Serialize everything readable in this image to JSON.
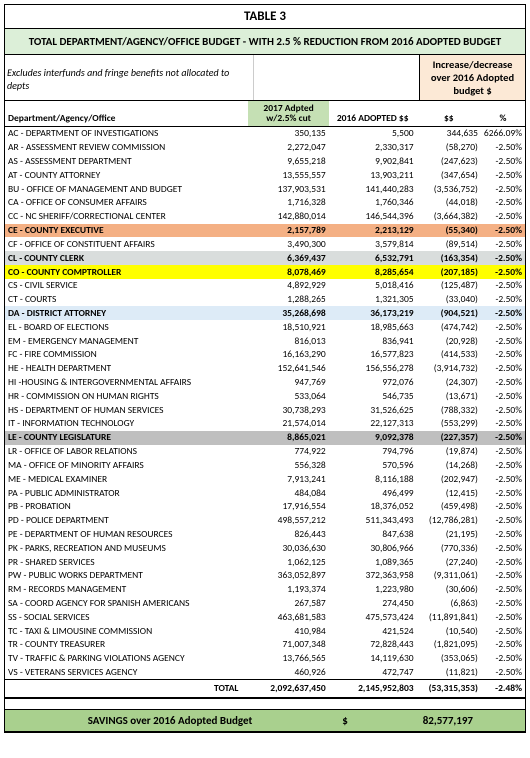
{
  "title": "TABLE 3",
  "subtitle": "TOTAL DEPARTMENT/AGENCY/OFFICE BUDGET - WITH 2.5 % REDUCTION FROM 2016 ADOPTED BUDGET",
  "excludes_note": "Excludes interfunds and fringe benefits not allocated to depts",
  "incdec_header": "Increase/decrease over 2016 Adopted budget $",
  "cols": {
    "dept": "Department/Agency/Office",
    "adpt": "2017 Adpted w/2.5% cut",
    "adopted": "2016 ADOPTED $$",
    "dollar": "$$",
    "pct": "%"
  },
  "rows": [
    {
      "hl": "",
      "label": "AC - DEPARTMENT OF INVESTIGATIONS",
      "a": "350,135",
      "b": "5,500",
      "c": "344,635",
      "d": "6266.09%"
    },
    {
      "hl": "",
      "label": "AR - ASSESSMENT REVIEW COMMISSION",
      "a": "2,272,047",
      "b": "2,330,317",
      "c": "(58,270)",
      "d": "-2.50%"
    },
    {
      "hl": "",
      "label": "AS - ASSESSMENT DEPARTMENT",
      "a": "9,655,218",
      "b": "9,902,841",
      "c": "(247,623)",
      "d": "-2.50%"
    },
    {
      "hl": "",
      "label": "AT - COUNTY ATTORNEY",
      "a": "13,555,557",
      "b": "13,903,211",
      "c": "(347,654)",
      "d": "-2.50%"
    },
    {
      "hl": "",
      "label": "BU - OFFICE OF MANAGEMENT AND BUDGET",
      "a": "137,903,531",
      "b": "141,440,283",
      "c": "(3,536,752)",
      "d": "-2.50%"
    },
    {
      "hl": "",
      "label": "CA - OFFICE OF CONSUMER AFFAIRS",
      "a": "1,716,328",
      "b": "1,760,346",
      "c": "(44,018)",
      "d": "-2.50%"
    },
    {
      "hl": "",
      "label": "CC - NC SHERIFF/CORRECTIONAL CENTER",
      "a": "142,880,014",
      "b": "146,544,396",
      "c": "(3,664,382)",
      "d": "-2.50%"
    },
    {
      "hl": "ce",
      "label": "CE - COUNTY EXECUTIVE",
      "a": "2,157,789",
      "b": "2,213,129",
      "c": "(55,340)",
      "d": "-2.50%"
    },
    {
      "hl": "",
      "label": "CF - OFFICE OF CONSTITUENT AFFAIRS",
      "a": "3,490,300",
      "b": "3,579,814",
      "c": "(89,514)",
      "d": "-2.50%"
    },
    {
      "hl": "cl",
      "label": "CL - COUNTY CLERK",
      "a": "6,369,437",
      "b": "6,532,791",
      "c": "(163,354)",
      "d": "-2.50%"
    },
    {
      "hl": "co",
      "label": "CO - COUNTY COMPTROLLER",
      "a": "8,078,469",
      "b": "8,285,654",
      "c": "(207,185)",
      "d": "-2.50%"
    },
    {
      "hl": "",
      "label": "CS - CIVIL SERVICE",
      "a": "4,892,929",
      "b": "5,018,416",
      "c": "(125,487)",
      "d": "-2.50%"
    },
    {
      "hl": "",
      "label": "CT - COURTS",
      "a": "1,288,265",
      "b": "1,321,305",
      "c": "(33,040)",
      "d": "-2.50%"
    },
    {
      "hl": "da",
      "label": "DA - DISTRICT ATTORNEY",
      "a": "35,268,698",
      "b": "36,173,219",
      "c": "(904,521)",
      "d": "-2.50%"
    },
    {
      "hl": "",
      "label": "EL - BOARD OF ELECTIONS",
      "a": "18,510,921",
      "b": "18,985,663",
      "c": "(474,742)",
      "d": "-2.50%"
    },
    {
      "hl": "",
      "label": "EM - EMERGENCY MANAGEMENT",
      "a": "816,013",
      "b": "836,941",
      "c": "(20,928)",
      "d": "-2.50%"
    },
    {
      "hl": "",
      "label": "FC - FIRE COMMISSION",
      "a": "16,163,290",
      "b": "16,577,823",
      "c": "(414,533)",
      "d": "-2.50%"
    },
    {
      "hl": "",
      "label": "HE - HEALTH DEPARTMENT",
      "a": "152,641,546",
      "b": "156,556,278",
      "c": "(3,914,732)",
      "d": "-2.50%"
    },
    {
      "hl": "",
      "label": "HI -HOUSING & INTERGOVERNMENTAL AFFAIRS",
      "a": "947,769",
      "b": "972,076",
      "c": "(24,307)",
      "d": "-2.50%"
    },
    {
      "hl": "",
      "label": "HR - COMMISSION ON HUMAN RIGHTS",
      "a": "533,064",
      "b": "546,735",
      "c": "(13,671)",
      "d": "-2.50%"
    },
    {
      "hl": "",
      "label": "HS - DEPARTMENT OF HUMAN SERVICES",
      "a": "30,738,293",
      "b": "31,526,625",
      "c": "(788,332)",
      "d": "-2.50%"
    },
    {
      "hl": "",
      "label": "IT - INFORMATION TECHNOLOGY",
      "a": "21,574,014",
      "b": "22,127,313",
      "c": "(553,299)",
      "d": "-2.50%"
    },
    {
      "hl": "le",
      "label": "LE - COUNTY LEGISLATURE",
      "a": "8,865,021",
      "b": "9,092,378",
      "c": "(227,357)",
      "d": "-2.50%"
    },
    {
      "hl": "",
      "label": "LR - OFFICE OF LABOR RELATIONS",
      "a": "774,922",
      "b": "794,796",
      "c": "(19,874)",
      "d": "-2.50%"
    },
    {
      "hl": "",
      "label": "MA - OFFICE OF MINORITY AFFAIRS",
      "a": "556,328",
      "b": "570,596",
      "c": "(14,268)",
      "d": "-2.50%"
    },
    {
      "hl": "",
      "label": "ME - MEDICAL EXAMINER",
      "a": "7,913,241",
      "b": "8,116,188",
      "c": "(202,947)",
      "d": "-2.50%"
    },
    {
      "hl": "",
      "label": "PA - PUBLIC ADMINISTRATOR",
      "a": "484,084",
      "b": "496,499",
      "c": "(12,415)",
      "d": "-2.50%"
    },
    {
      "hl": "",
      "label": "PB - PROBATION",
      "a": "17,916,554",
      "b": "18,376,052",
      "c": "(459,498)",
      "d": "-2.50%"
    },
    {
      "hl": "",
      "label": "PD - POLICE DEPARTMENT",
      "a": "498,557,212",
      "b": "511,343,493",
      "c": "(12,786,281)",
      "d": "-2.50%"
    },
    {
      "hl": "",
      "label": "PE - DEPARTMENT OF HUMAN RESOURCES",
      "a": "826,443",
      "b": "847,638",
      "c": "(21,195)",
      "d": "-2.50%"
    },
    {
      "hl": "",
      "label": "PK - PARKS, RECREATION AND MUSEUMS",
      "a": "30,036,630",
      "b": "30,806,966",
      "c": "(770,336)",
      "d": "-2.50%"
    },
    {
      "hl": "",
      "label": "PR - SHARED SERVICES",
      "a": "1,062,125",
      "b": "1,089,365",
      "c": "(27,240)",
      "d": "-2.50%"
    },
    {
      "hl": "",
      "label": "PW - PUBLIC WORKS DEPARTMENT",
      "a": "363,052,897",
      "b": "372,363,958",
      "c": "(9,311,061)",
      "d": "-2.50%"
    },
    {
      "hl": "",
      "label": "RM - RECORDS MANAGEMENT",
      "a": "1,193,374",
      "b": "1,223,980",
      "c": "(30,606)",
      "d": "-2.50%"
    },
    {
      "hl": "",
      "label": "SA - COORD AGENCY FOR SPANISH AMERICANS",
      "a": "267,587",
      "b": "274,450",
      "c": "(6,863)",
      "d": "-2.50%"
    },
    {
      "hl": "",
      "label": "SS - SOCIAL SERVICES",
      "a": "463,681,583",
      "b": "475,573,424",
      "c": "(11,891,841)",
      "d": "-2.50%"
    },
    {
      "hl": "",
      "label": "TC - TAXI & LIMOUSINE COMMISSION",
      "a": "410,984",
      "b": "421,524",
      "c": "(10,540)",
      "d": "-2.50%"
    },
    {
      "hl": "",
      "label": "TR - COUNTY TREASURER",
      "a": "71,007,348",
      "b": "72,828,443",
      "c": "(1,821,095)",
      "d": "-2.50%"
    },
    {
      "hl": "",
      "label": "TV - TRAFFIC & PARKING VIOLATIONS AGENCY",
      "a": "13,766,565",
      "b": "14,119,630",
      "c": "(353,065)",
      "d": "-2.50%"
    },
    {
      "hl": "",
      "label": "VS - VETERANS SERVICES AGENCY",
      "a": "460,926",
      "b": "472,747",
      "c": "(11,821)",
      "d": "-2.50%"
    }
  ],
  "total": {
    "label": "TOTAL",
    "a": "2,092,637,450",
    "b": "2,145,952,803",
    "c": "(53,315,353)",
    "d": "-2.48%"
  },
  "savings": {
    "label": "SAVINGS over 2016 Adopted Budget",
    "symbol": "$",
    "value": "82,577,197"
  }
}
